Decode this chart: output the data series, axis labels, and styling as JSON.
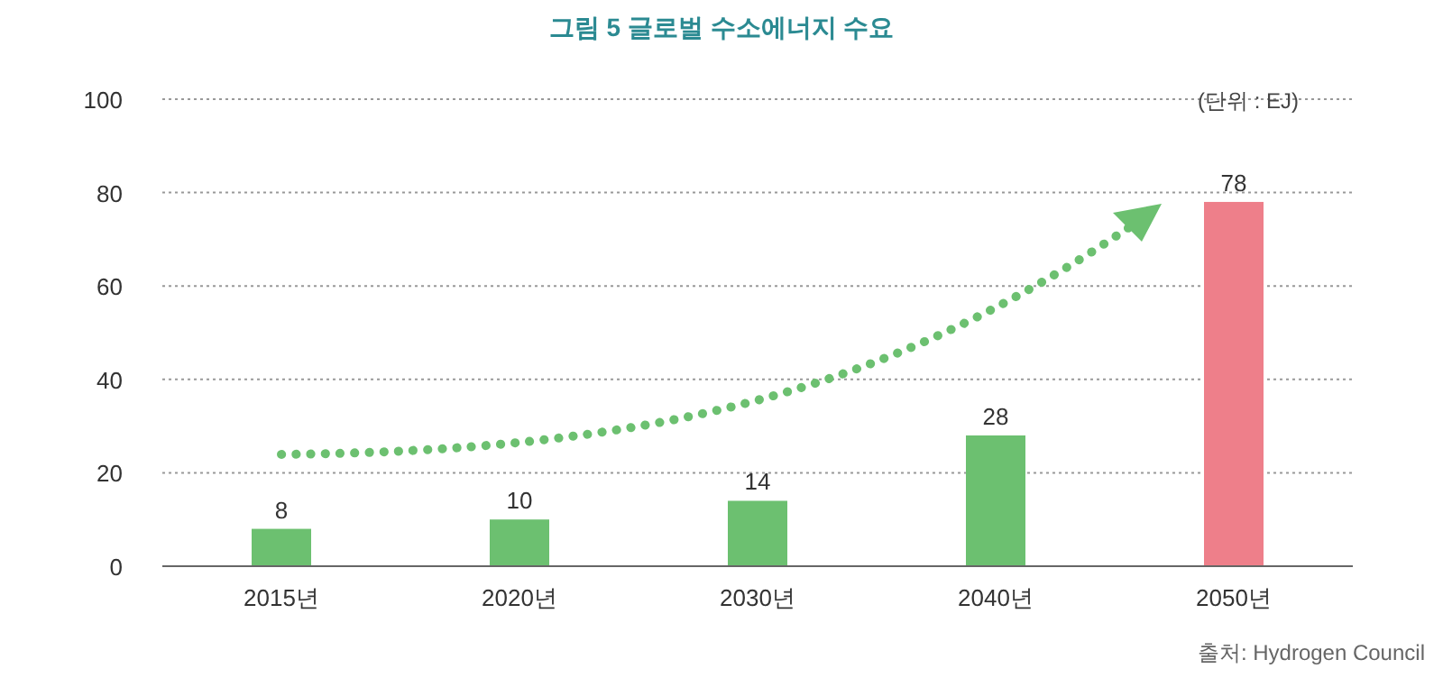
{
  "chart_data": {
    "type": "bar",
    "title": "그림 5 글로벌 수소에너지 수요",
    "categories": [
      "2015년",
      "2020년",
      "2030년",
      "2040년",
      "2050년"
    ],
    "values": [
      8,
      10,
      14,
      28,
      78
    ],
    "colors": [
      "#6cc070",
      "#6cc070",
      "#6cc070",
      "#6cc070",
      "#ee7f8a"
    ],
    "ylim": [
      0,
      100
    ],
    "yticks": [
      0,
      20,
      40,
      60,
      80,
      100
    ],
    "grid": "y",
    "data_labels": true,
    "annotations": [
      "(단위 : EJ)",
      "출처: Hydrogen Council"
    ]
  }
}
